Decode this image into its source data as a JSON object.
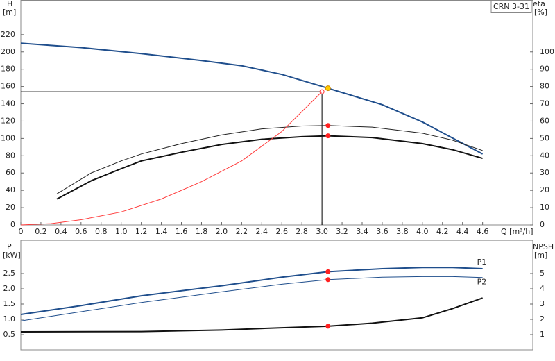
{
  "chart_data": [
    {
      "type": "line",
      "title": "CRN 3-31",
      "x_label": "Q [m³/h]",
      "y_label": "H",
      "y_unit": "[m]",
      "y2_label": "eta",
      "y2_unit": "[%]",
      "xlim": [
        0,
        5.1
      ],
      "ylim": [
        0,
        260
      ],
      "y2lim": [
        0,
        130
      ],
      "xticks": [
        0,
        0.2,
        0.4,
        0.6,
        0.8,
        {
          "value": 1.0,
          "label": "1.0"
        },
        1.2,
        1.4,
        1.6,
        1.8,
        {
          "value": 2.0,
          "label": "2.0"
        },
        2.2,
        2.4,
        2.6,
        2.8,
        {
          "value": 3.0,
          "label": "3.0"
        },
        3.2,
        3.4,
        3.6,
        3.8,
        {
          "value": 4.0,
          "label": "4.0"
        },
        4.2,
        4.4,
        4.6
      ],
      "yticks": [
        0,
        20,
        40,
        60,
        80,
        100,
        120,
        140,
        160,
        180,
        200,
        220
      ],
      "y2ticks": [
        0,
        10,
        20,
        30,
        40,
        50,
        60,
        70,
        80,
        90,
        100
      ],
      "series": [
        {
          "color": "#1f4e8c",
          "width": 2,
          "x": [
            0,
            0.6,
            1.2,
            1.8,
            2.2,
            2.6,
            3.06,
            3.6,
            4.0,
            4.6
          ],
          "values": [
            210,
            205,
            198,
            190,
            184,
            174,
            158,
            139,
            119,
            82
          ]
        },
        {
          "color": "#222222",
          "width": 1,
          "axis": "y2",
          "x": [
            0.36,
            0.7,
            1.0,
            1.2,
            1.6,
            2.0,
            2.4,
            2.8,
            3.06,
            3.5,
            4.0,
            4.3,
            4.6
          ],
          "values": [
            18,
            30,
            37,
            41,
            47,
            52,
            55.5,
            57.2,
            57.5,
            56.5,
            53,
            49,
            43
          ]
        },
        {
          "color": "#111111",
          "width": 2,
          "axis": "y2",
          "x": [
            0.36,
            0.7,
            1.0,
            1.2,
            1.6,
            2.0,
            2.4,
            2.8,
            3.06,
            3.5,
            4.0,
            4.3,
            4.6
          ],
          "values": [
            15,
            25.5,
            32.5,
            37,
            42,
            46.5,
            49.5,
            51,
            51.5,
            50.5,
            47,
            43.5,
            38.5
          ]
        },
        {
          "color": "#ff3b3b",
          "width": 1,
          "x": [
            0,
            0.3,
            0.6,
            1.0,
            1.4,
            1.8,
            2.2,
            2.6,
            3.0
          ],
          "values": [
            0,
            1.5,
            6,
            15,
            30,
            50,
            74,
            108,
            154
          ]
        }
      ],
      "duty_point": {
        "x": 3.0,
        "y": 154
      },
      "markers": [
        {
          "x": 3.06,
          "y": 158,
          "color": "#ffcc00"
        },
        {
          "x": 3.06,
          "y": 57.5,
          "axis": "y2",
          "color": "#ff2020"
        },
        {
          "x": 3.06,
          "y": 51.5,
          "axis": "y2",
          "color": "#ff2020"
        }
      ]
    },
    {
      "type": "line",
      "y_label": "P",
      "y_unit": "[kW]",
      "y2_label": "NPSH",
      "y2_unit": "[m]",
      "xlim": [
        0,
        5.1
      ],
      "ylim": [
        0,
        3.6
      ],
      "y2lim": [
        0,
        7.2
      ],
      "yticks": [
        0.5,
        {
          "value": 1.0,
          "label": "1.0"
        },
        1.5,
        {
          "value": 2.0,
          "label": "2.0"
        },
        2.5
      ],
      "y2ticks": [
        1,
        2,
        3,
        4,
        5
      ],
      "series": [
        {
          "name": "P1",
          "color": "#1f4e8c",
          "width": 2,
          "x": [
            0,
            0.6,
            1.2,
            2.0,
            2.6,
            3.06,
            3.6,
            4.0,
            4.3,
            4.6
          ],
          "values": [
            1.16,
            1.45,
            1.77,
            2.1,
            2.38,
            2.56,
            2.66,
            2.7,
            2.7,
            2.66
          ]
        },
        {
          "name": "P2",
          "color": "#1f4e8c",
          "width": 1,
          "x": [
            0,
            0.6,
            1.2,
            2.0,
            2.6,
            3.06,
            3.6,
            4.0,
            4.3,
            4.6
          ],
          "values": [
            0.95,
            1.25,
            1.55,
            1.9,
            2.15,
            2.3,
            2.38,
            2.4,
            2.4,
            2.37
          ]
        },
        {
          "color": "#111111",
          "width": 2,
          "axis": "y2",
          "x": [
            0,
            1.2,
            2.0,
            2.6,
            3.06,
            3.5,
            4.0,
            4.3,
            4.6
          ],
          "values": [
            1.18,
            1.2,
            1.3,
            1.45,
            1.55,
            1.75,
            2.1,
            2.7,
            3.4
          ]
        }
      ],
      "markers": [
        {
          "x": 3.06,
          "y": 2.56,
          "color": "#ff2020"
        },
        {
          "x": 3.06,
          "y": 2.3,
          "color": "#ff2020"
        },
        {
          "x": 3.06,
          "y": 1.55,
          "axis": "y2",
          "color": "#ff2020"
        }
      ]
    }
  ]
}
